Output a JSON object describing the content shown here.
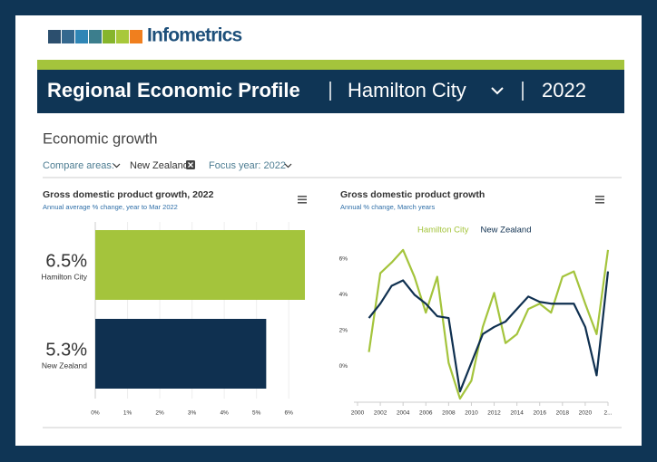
{
  "header": {
    "logo_text": "Infometrics",
    "title": "Regional Economic Profile",
    "region": "Hamilton City",
    "year": "2022"
  },
  "section": {
    "title": "Economic growth",
    "compare_label": "Compare areas:",
    "compare_chip": "New Zealand",
    "focus_year": "Focus year: 2022"
  },
  "chart_data": [
    {
      "type": "bar",
      "orientation": "horizontal",
      "title": "Gross domestic product growth, 2022",
      "subtitle": "Annual average % change, year to Mar 2022",
      "categories": [
        "Hamilton City",
        "New Zealand"
      ],
      "values": [
        6.5,
        5.3
      ],
      "value_labels": [
        "6.5%",
        "5.3%"
      ],
      "colors": [
        "#a4c43c",
        "#0f3050"
      ],
      "xlim": [
        0,
        6.5
      ],
      "xticks": [
        {
          "value": 0,
          "label": "0%"
        },
        {
          "value": 1,
          "label": "1%"
        },
        {
          "value": 2,
          "label": "2%"
        },
        {
          "value": 3,
          "label": "3%"
        },
        {
          "value": 4,
          "label": "4%"
        },
        {
          "value": 5,
          "label": "5%"
        },
        {
          "value": 6,
          "label": "6%"
        }
      ],
      "grid": true
    },
    {
      "type": "line",
      "title": "Gross domestic product growth",
      "subtitle": "Annual % change, March years",
      "x": [
        2001,
        2002,
        2003,
        2004,
        2005,
        2006,
        2007,
        2008,
        2009,
        2010,
        2011,
        2012,
        2013,
        2014,
        2015,
        2016,
        2017,
        2018,
        2019,
        2020,
        2021,
        2022
      ],
      "series": [
        {
          "name": "Hamilton City",
          "color": "#a4c43c",
          "values": [
            0.8,
            5.2,
            5.8,
            6.5,
            5.0,
            3.0,
            5.0,
            0.2,
            -1.8,
            -0.8,
            2.2,
            4.1,
            1.3,
            1.8,
            3.2,
            3.5,
            3.0,
            5.0,
            5.3,
            3.5,
            1.8,
            6.5
          ]
        },
        {
          "name": "New Zealand",
          "color": "#0f3050",
          "values": [
            2.7,
            3.5,
            4.5,
            4.8,
            4.0,
            3.5,
            2.8,
            2.7,
            -1.4,
            0.2,
            1.8,
            2.2,
            2.5,
            3.2,
            3.9,
            3.6,
            3.5,
            3.5,
            3.5,
            2.2,
            -0.5,
            5.3
          ]
        }
      ],
      "xlim": [
        2000,
        2022
      ],
      "ylim": [
        -2,
        7
      ],
      "xticks": [
        2000,
        2002,
        2004,
        2006,
        2008,
        2010,
        2012,
        2014,
        2016,
        2018,
        2020,
        {
          "value": 2022,
          "label": "2..."
        }
      ],
      "yticks": [
        {
          "value": 0,
          "label": "0%"
        },
        {
          "value": 2,
          "label": "2%"
        },
        {
          "value": 4,
          "label": "4%"
        },
        {
          "value": 6,
          "label": "6%"
        }
      ],
      "grid": false
    }
  ]
}
